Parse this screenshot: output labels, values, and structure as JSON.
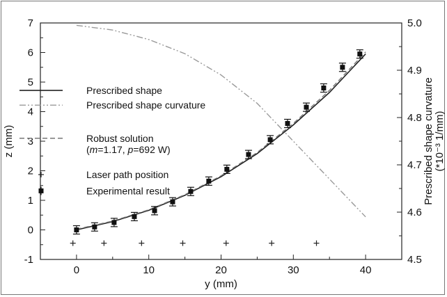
{
  "chart_data": {
    "type": "line",
    "xlabel": "y (mm)",
    "ylabel": "z (mm)",
    "ylabel_right_line1": "Prescribed shape curvature",
    "ylabel_right_line2": "(*10⁻³ 1/mm)",
    "xlim": [
      -5,
      45
    ],
    "ylim": [
      -1,
      7
    ],
    "y2lim": [
      4.5,
      5.0
    ],
    "xticks": [
      0,
      10,
      20,
      30,
      40
    ],
    "yticks": [
      -1,
      0,
      1,
      2,
      3,
      4,
      5,
      6,
      7
    ],
    "y2ticks": [
      4.5,
      4.6,
      4.7,
      4.8,
      4.9,
      5.0
    ],
    "grid": false,
    "legend_position": "left",
    "series": [
      {
        "name": "Prescribed shape",
        "style": "solid",
        "axis": "left",
        "x": [
          0,
          5,
          10,
          15,
          20,
          25,
          30,
          35,
          40
        ],
        "y": [
          0,
          0.28,
          0.66,
          1.17,
          1.8,
          2.58,
          3.55,
          4.65,
          5.95
        ]
      },
      {
        "name": "Prescribed shape curvature",
        "style": "dash-dot-dot",
        "axis": "right",
        "x": [
          0,
          5,
          10,
          15,
          20,
          25,
          30,
          35,
          40
        ],
        "y": [
          4.995,
          4.985,
          4.965,
          4.935,
          4.89,
          4.83,
          4.75,
          4.67,
          4.59
        ]
      },
      {
        "name": "Robust solution\n(m=1.17, p=692 W)",
        "style": "dashed",
        "axis": "left",
        "x": [
          0,
          5,
          10,
          15,
          20,
          25,
          30,
          35,
          40
        ],
        "y": [
          0.02,
          0.3,
          0.68,
          1.19,
          1.83,
          2.62,
          3.6,
          4.72,
          6.02
        ]
      },
      {
        "name": "Laser path position",
        "style": "cross",
        "axis": "left",
        "x": [
          -0.5,
          3.8,
          9,
          14.7,
          20.7,
          27,
          33.2
        ],
        "y": [
          -0.45,
          -0.45,
          -0.45,
          -0.45,
          -0.45,
          -0.45,
          -0.45
        ]
      },
      {
        "name": "Experimental result",
        "style": "marker-errorbar",
        "axis": "left",
        "x": [
          0,
          2.5,
          5.2,
          8,
          10.8,
          13.3,
          15.8,
          18.3,
          20.8,
          23.8,
          26.8,
          29.2,
          31.8,
          34.2,
          36.8,
          39.2
        ],
        "y": [
          0.0,
          0.1,
          0.25,
          0.45,
          0.65,
          0.95,
          1.3,
          1.65,
          2.05,
          2.55,
          3.05,
          3.6,
          4.15,
          4.8,
          5.5,
          5.95
        ]
      }
    ]
  }
}
